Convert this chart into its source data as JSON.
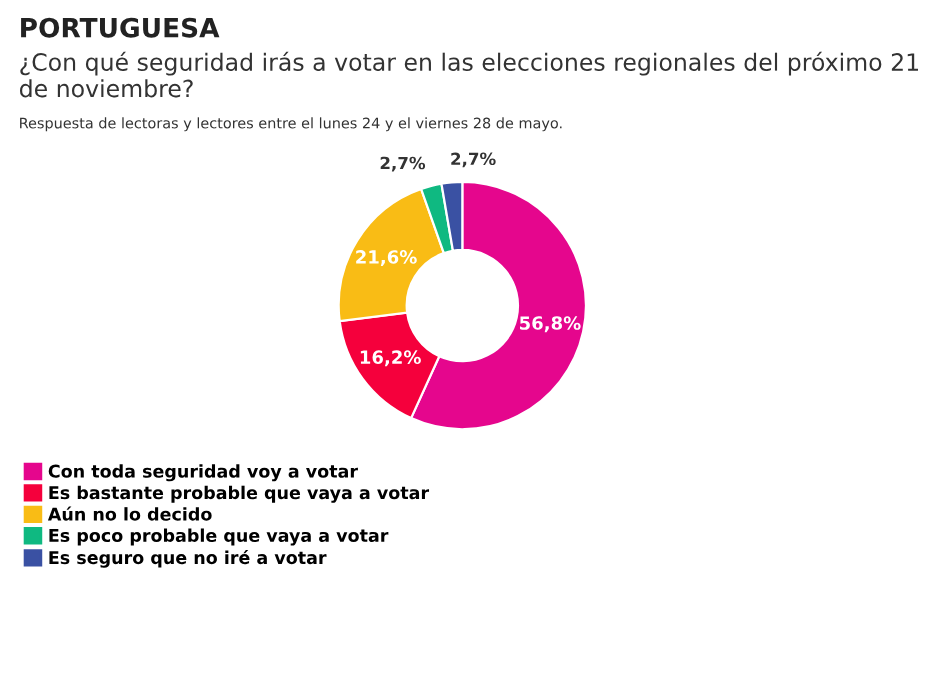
{
  "chart_data": {
    "type": "donut",
    "title": "PORTUGUESA",
    "subtitle": "¿Con qué seguridad irás a votar en las elecciones regionales del próximo 21 de noviembre?",
    "annotations": [
      "Respuesta de lectoras y lectores entre el lunes 24 y el viernes 28 de mayo."
    ],
    "categories": [
      "Con toda seguridad voy a votar",
      "Es bastante probable que vaya a votar",
      "Aún no lo decido",
      "Es poco probable que vaya a votar",
      "Es seguro que no iré a votar"
    ],
    "values": [
      56.8,
      16.2,
      21.6,
      2.7,
      2.7
    ],
    "value_labels": [
      "56,8%",
      "16,2%",
      "21,6%",
      "2,7%",
      "2,7%"
    ],
    "colors": [
      "#e5068d",
      "#f5003c",
      "#f9bc15",
      "#0fb981",
      "#3a51a3"
    ],
    "legend": "bottom left"
  }
}
